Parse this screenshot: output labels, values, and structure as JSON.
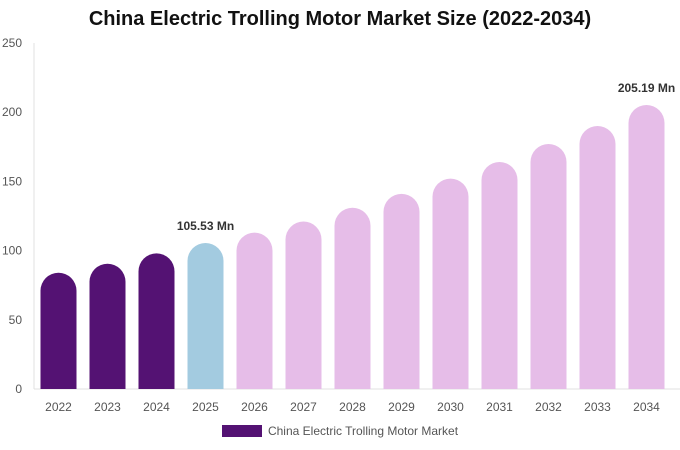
{
  "chart_data": {
    "type": "bar",
    "title": "China Electric Trolling Motor Market Size (2022-2034)",
    "xlabel": "",
    "ylabel": "",
    "categories": [
      "2022",
      "2023",
      "2024",
      "2025",
      "2026",
      "2027",
      "2028",
      "2029",
      "2030",
      "2031",
      "2032",
      "2033",
      "2034"
    ],
    "series": [
      {
        "name": "China Electric Trolling Motor Market",
        "values": [
          84,
          90.5,
          98,
          105.53,
          113,
          121,
          131,
          141,
          152,
          164,
          177,
          190,
          205.19
        ]
      }
    ],
    "ylim": [
      0,
      250
    ],
    "yticks": [
      0,
      50,
      100,
      150,
      200,
      250
    ],
    "data_labels": [
      {
        "category": "2025",
        "text": "105.53 Mn"
      },
      {
        "category": "2034",
        "text": "205.19 Mn"
      }
    ],
    "bar_colors": {
      "historical": "#541273",
      "base_year": "#a3cbe0",
      "forecast": "#e6bde8"
    },
    "legend_color": "#541273",
    "legend_position": "bottom-center",
    "grid": false
  }
}
